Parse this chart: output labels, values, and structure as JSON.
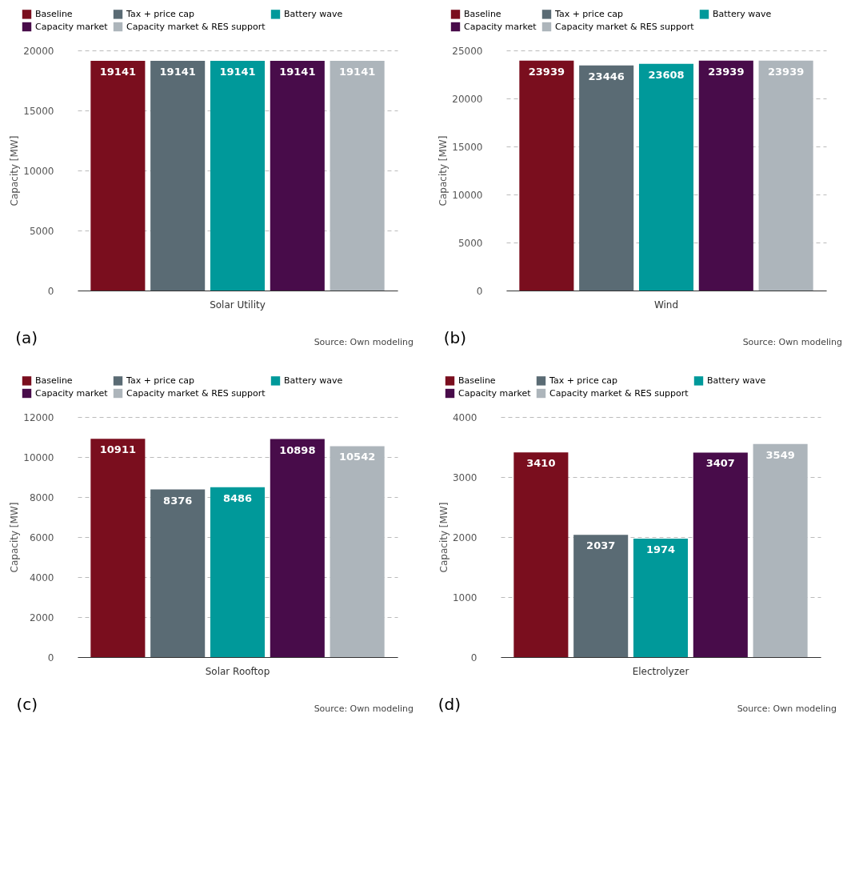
{
  "chart_data": [
    {
      "type": "bar",
      "categories": [
        "Solar Utility"
      ],
      "ylabel": "Capacity [MW]",
      "ylim": [
        0,
        20000
      ],
      "yticks": [
        0,
        5000,
        10000,
        15000,
        20000
      ],
      "grid": "y",
      "legend": "top left",
      "data_labels": true,
      "series": [
        {
          "name": "Baseline",
          "color": "#7a0e1e",
          "values": [
            19141
          ]
        },
        {
          "name": "Tax + price cap",
          "color": "#5a6b74",
          "values": [
            19141
          ]
        },
        {
          "name": "Battery wave",
          "color": "#00999a",
          "values": [
            19141
          ]
        },
        {
          "name": "Capacity market",
          "color": "#480c4a",
          "values": [
            19141
          ]
        },
        {
          "name": "Capacity market & RES support",
          "color": "#adb5bb",
          "values": [
            19141
          ]
        }
      ],
      "annotations": [
        "(a)",
        "Source: Own modeling"
      ]
    },
    {
      "type": "bar",
      "categories": [
        "Wind"
      ],
      "ylabel": "Capacity [MW]",
      "ylim": [
        0,
        25000
      ],
      "yticks": [
        0,
        5000,
        10000,
        15000,
        20000,
        25000
      ],
      "grid": "y",
      "legend": "top left",
      "data_labels": true,
      "series": [
        {
          "name": "Baseline",
          "color": "#7a0e1e",
          "values": [
            23939
          ]
        },
        {
          "name": "Tax + price cap",
          "color": "#5a6b74",
          "values": [
            23446
          ]
        },
        {
          "name": "Battery wave",
          "color": "#00999a",
          "values": [
            23608
          ]
        },
        {
          "name": "Capacity market",
          "color": "#480c4a",
          "values": [
            23939
          ]
        },
        {
          "name": "Capacity market & RES support",
          "color": "#adb5bb",
          "values": [
            23939
          ]
        }
      ],
      "annotations": [
        "(b)",
        "Source: Own modeling"
      ]
    },
    {
      "type": "bar",
      "categories": [
        "Solar Rooftop"
      ],
      "ylabel": "Capacity [MW]",
      "ylim": [
        0,
        12000
      ],
      "yticks": [
        0,
        2000,
        4000,
        6000,
        8000,
        10000,
        12000
      ],
      "grid": "y",
      "legend": "top left",
      "data_labels": true,
      "series": [
        {
          "name": "Baseline",
          "color": "#7a0e1e",
          "values": [
            10911
          ]
        },
        {
          "name": "Tax + price cap",
          "color": "#5a6b74",
          "values": [
            8376
          ]
        },
        {
          "name": "Battery wave",
          "color": "#00999a",
          "values": [
            8486
          ]
        },
        {
          "name": "Capacity market",
          "color": "#480c4a",
          "values": [
            10898
          ]
        },
        {
          "name": "Capacity market & RES support",
          "color": "#adb5bb",
          "values": [
            10542
          ]
        }
      ],
      "annotations": [
        "(c)",
        "Source: Own modeling"
      ]
    },
    {
      "type": "bar",
      "categories": [
        "Electrolyzer"
      ],
      "ylabel": "Capacity [MW]",
      "ylim": [
        0,
        4000
      ],
      "yticks": [
        0,
        1000,
        2000,
        3000,
        4000
      ],
      "grid": "y",
      "legend": "top left",
      "data_labels": true,
      "series": [
        {
          "name": "Baseline",
          "color": "#7a0e1e",
          "values": [
            3410
          ]
        },
        {
          "name": "Tax + price cap",
          "color": "#5a6b74",
          "values": [
            2037
          ]
        },
        {
          "name": "Battery wave",
          "color": "#00999a",
          "values": [
            1974
          ]
        },
        {
          "name": "Capacity market",
          "color": "#480c4a",
          "values": [
            3407
          ]
        },
        {
          "name": "Capacity market & RES support",
          "color": "#adb5bb",
          "values": [
            3549
          ]
        }
      ],
      "annotations": [
        "(d)",
        "Source: Own modeling"
      ]
    }
  ]
}
